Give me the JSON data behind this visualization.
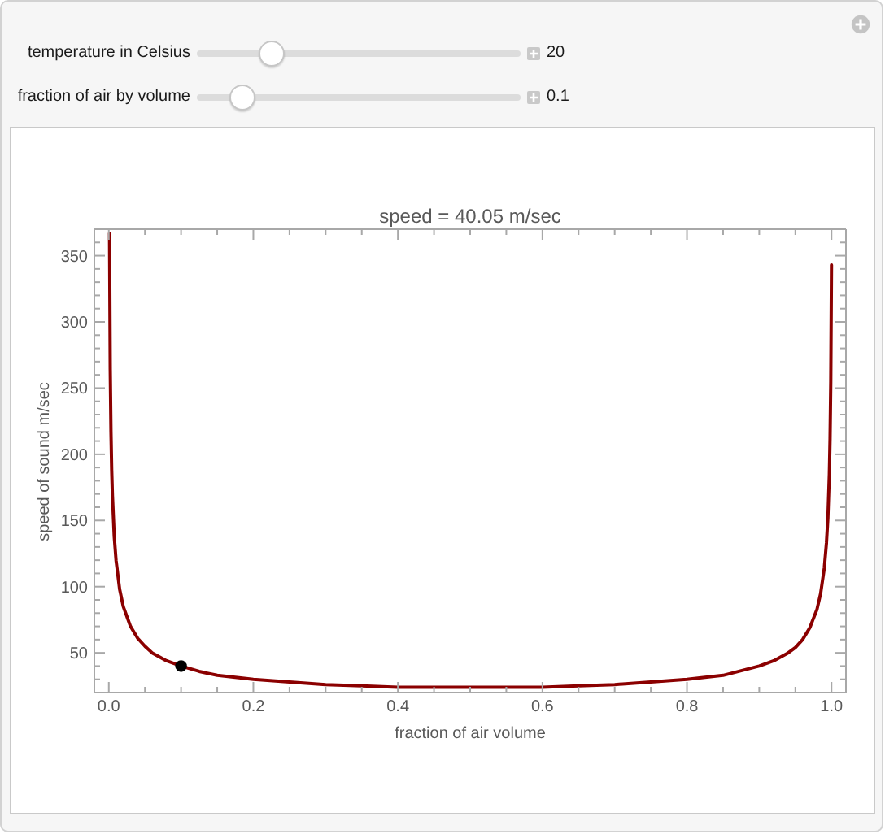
{
  "chart_data": {
    "type": "line",
    "title": "speed = 40.05 m/sec",
    "xlabel": "fraction of air volume",
    "ylabel": "speed of sound m/sec",
    "annotations": [
      "temperature in Celsius",
      "20",
      "fraction of air by volume",
      "0.1"
    ],
    "xlim": [
      -0.02,
      1.02
    ],
    "ylim": [
      20,
      370
    ],
    "xticks": [
      {
        "value": 0,
        "label": "0.0"
      },
      {
        "value": 0.05,
        "label": null
      },
      {
        "value": 0.1,
        "label": null
      },
      {
        "value": 0.15,
        "label": null
      },
      0.2,
      {
        "value": 0.25,
        "label": null
      },
      {
        "value": 0.3,
        "label": null
      },
      {
        "value": 0.35,
        "label": null
      },
      0.4,
      {
        "value": 0.45,
        "label": null
      },
      {
        "value": 0.5,
        "label": null
      },
      {
        "value": 0.55,
        "label": null
      },
      0.6,
      {
        "value": 0.65,
        "label": null
      },
      {
        "value": 0.7,
        "label": null
      },
      {
        "value": 0.75,
        "label": null
      },
      0.8,
      {
        "value": 0.85,
        "label": null
      },
      {
        "value": 0.9,
        "label": null
      },
      {
        "value": 0.95,
        "label": null
      },
      {
        "value": 1,
        "label": "1.0"
      }
    ],
    "yticks": [
      {
        "value": 30,
        "label": null
      },
      {
        "value": 40,
        "label": null
      },
      50,
      {
        "value": 60,
        "label": null
      },
      {
        "value": 70,
        "label": null
      },
      {
        "value": 80,
        "label": null
      },
      {
        "value": 90,
        "label": null
      },
      100,
      {
        "value": 110,
        "label": null
      },
      {
        "value": 120,
        "label": null
      },
      {
        "value": 130,
        "label": null
      },
      {
        "value": 140,
        "label": null
      },
      150,
      {
        "value": 160,
        "label": null
      },
      {
        "value": 170,
        "label": null
      },
      {
        "value": 180,
        "label": null
      },
      {
        "value": 190,
        "label": null
      },
      200,
      {
        "value": 210,
        "label": null
      },
      {
        "value": 220,
        "label": null
      },
      {
        "value": 230,
        "label": null
      },
      {
        "value": 240,
        "label": null
      },
      250,
      {
        "value": 260,
        "label": null
      },
      {
        "value": 270,
        "label": null
      },
      {
        "value": 280,
        "label": null
      },
      {
        "value": 290,
        "label": null
      },
      300,
      {
        "value": 310,
        "label": null
      },
      {
        "value": 320,
        "label": null
      },
      {
        "value": 330,
        "label": null
      },
      {
        "value": 340,
        "label": null
      },
      350,
      {
        "value": 360,
        "label": null
      }
    ],
    "series": [
      {
        "color": "#8b0000",
        "x": [
          0.001,
          0.002,
          0.003,
          0.004,
          0.005,
          0.0075,
          0.01,
          0.015,
          0.02,
          0.03,
          0.04,
          0.05,
          0.06,
          0.08,
          0.1,
          0.125,
          0.15,
          0.2,
          0.25,
          0.3,
          0.35,
          0.4,
          0.45,
          0.5,
          0.55,
          0.6,
          0.65,
          0.7,
          0.75,
          0.8,
          0.85,
          0.9,
          0.92,
          0.94,
          0.95,
          0.96,
          0.97,
          0.98,
          0.985,
          0.99,
          0.993,
          0.995,
          0.997,
          0.998,
          0.999,
          1
        ],
        "values": [
          367,
          264,
          217,
          188,
          169,
          138,
          120,
          98,
          85,
          70,
          61,
          55,
          50,
          44,
          40,
          36,
          33,
          30,
          28,
          26,
          25,
          24,
          24,
          24,
          24,
          24,
          25,
          26,
          28,
          30,
          33,
          40,
          44,
          50,
          54,
          60,
          69,
          83,
          95,
          114,
          133,
          152,
          185,
          212,
          255,
          343
        ]
      },
      {
        "type": "scatter",
        "color": "#000000",
        "marker": "circle",
        "x": [
          0.1
        ],
        "values": [
          40
        ]
      }
    ]
  }
}
